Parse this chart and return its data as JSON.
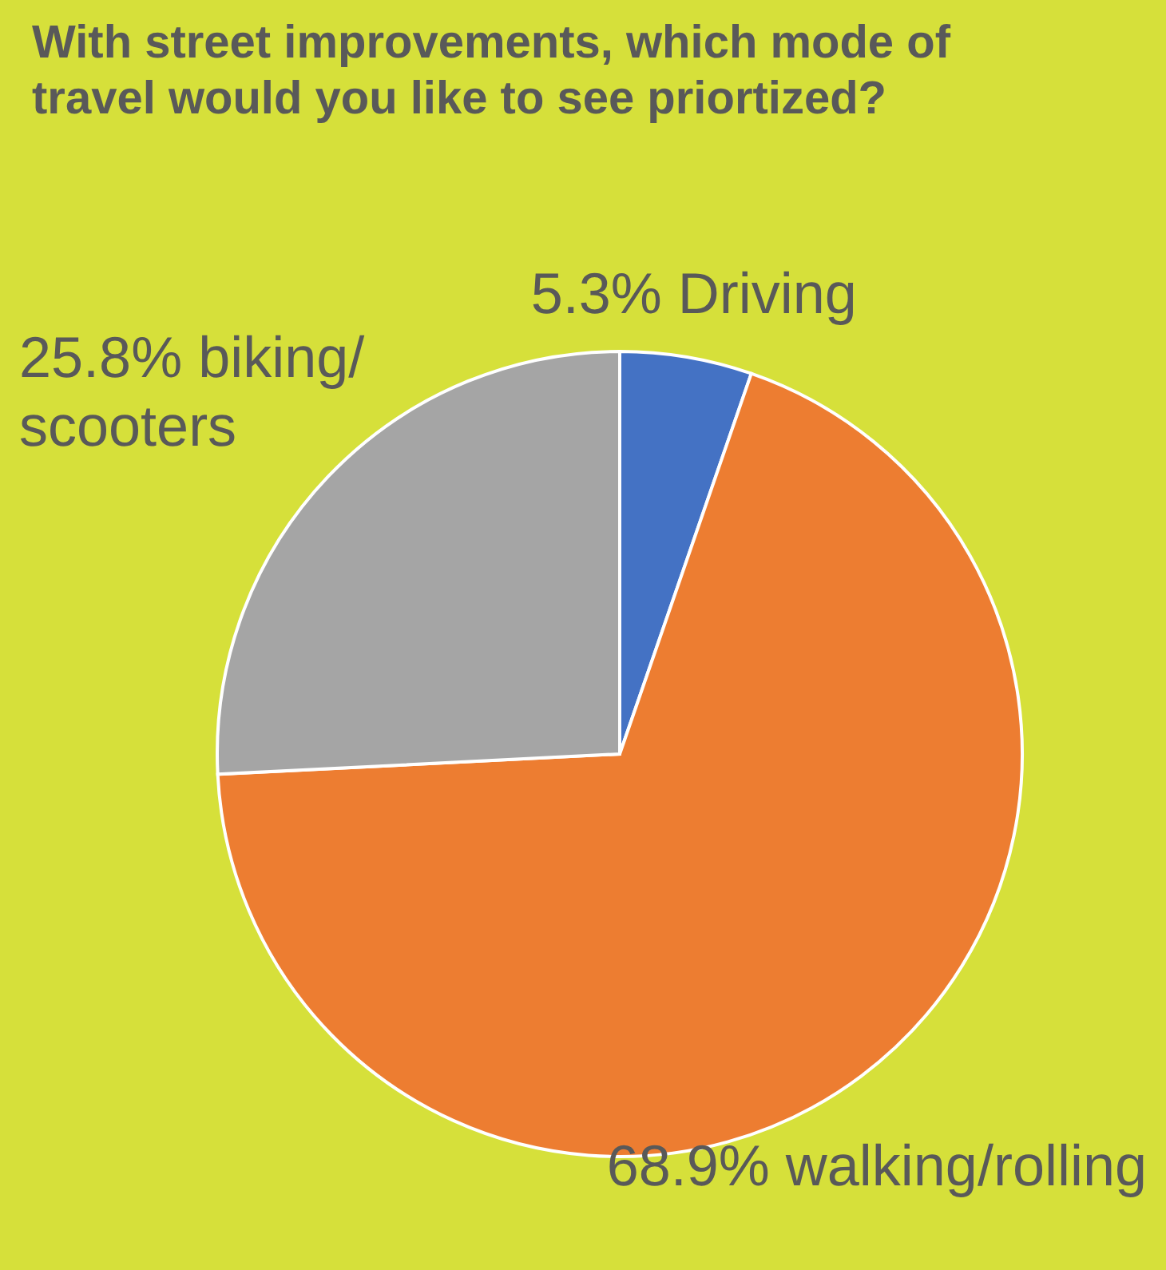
{
  "chart_data": {
    "type": "pie",
    "title": "With street improvements, which mode of travel would you like to see priortized?",
    "categories": [
      "5.3% Driving",
      "68.9% walking/rolling",
      "25.8% biking/scooters"
    ],
    "values": [
      5.3,
      68.9,
      25.8
    ],
    "colors": [
      "#4472c4",
      "#ed7d31",
      "#a5a5a5"
    ]
  }
}
